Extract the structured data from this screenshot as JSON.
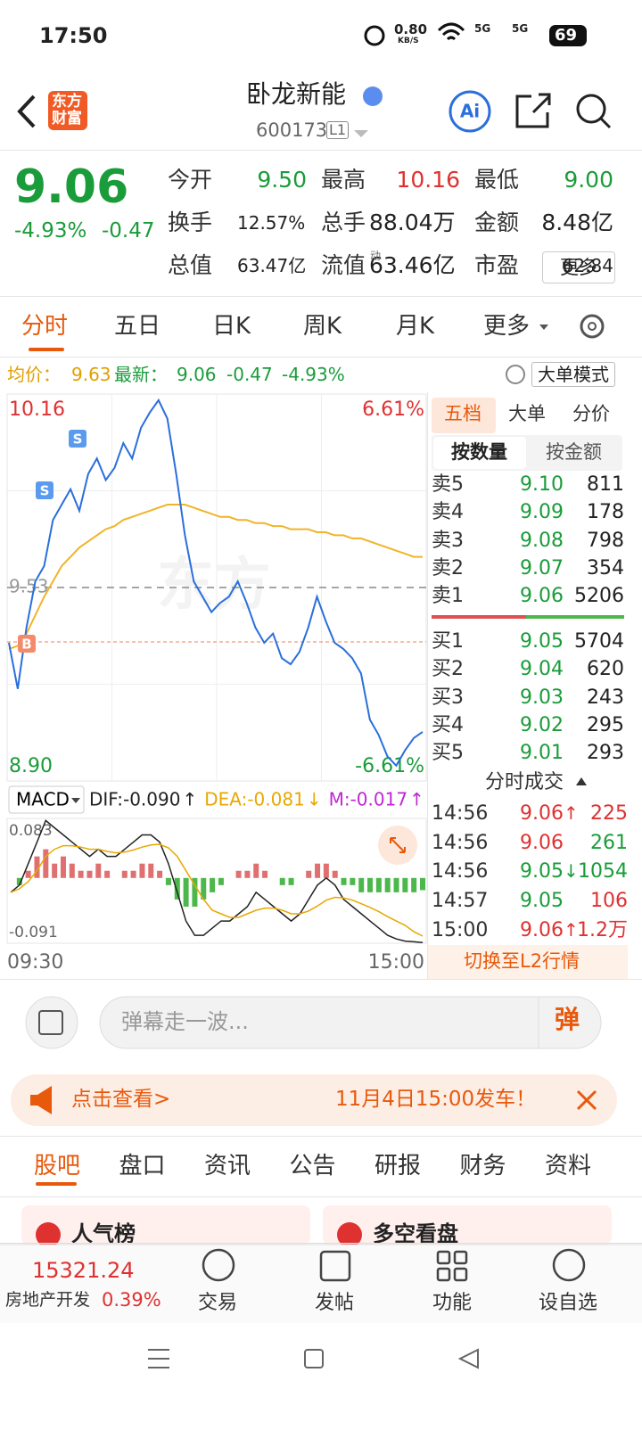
{
  "status": {
    "time": "17:50",
    "speed": "0.80",
    "speed_unit": "KB/S",
    "network": [
      "5G",
      "5G"
    ],
    "battery": "69"
  },
  "header": {
    "logo": [
      "东方",
      "财富"
    ],
    "title": "卧龙新能",
    "code": "600173",
    "level": "L1"
  },
  "quote": {
    "price": "9.06",
    "change_pct": "-4.93%",
    "change": "-0.47",
    "fields": [
      {
        "label": "今开",
        "value": "9.50",
        "color": "#1a9c3a"
      },
      {
        "label": "最高",
        "value": "10.16",
        "color": "#e03131"
      },
      {
        "label": "最低",
        "value": "9.00",
        "color": "#1a9c3a"
      },
      {
        "label": "换手",
        "value": "12.57%",
        "color": "#222222"
      },
      {
        "label": "总手",
        "value": "88.04万",
        "color": "#222222"
      },
      {
        "label": "金额",
        "value": "8.48亿",
        "color": "#222222"
      },
      {
        "label": "总值",
        "value": "63.47亿",
        "color": "#222222"
      },
      {
        "label": "流值",
        "value": "63.46亿",
        "color": "#222222"
      },
      {
        "label": "市盈",
        "value": "62.84",
        "color": "#222222"
      }
    ],
    "pe_tag": "动",
    "more": "更多"
  },
  "tabs": [
    "分时",
    "五日",
    "日K",
    "周K",
    "月K",
    "更多"
  ],
  "info": {
    "avg_label": "均价：",
    "avg": "9.63",
    "last_label": "最新：",
    "last": "9.06",
    "change": "-0.47",
    "pct": "-4.93%",
    "mode": "大单模式"
  },
  "markers": [
    "S",
    "S",
    "B"
  ],
  "chart_data": [
    {
      "type": "line",
      "ylim": [
        8.9,
        10.16
      ],
      "yticks": [
        10.16,
        {
          "value": 8.9,
          "label": "8.90"
        }
      ],
      "y2lim": [
        -6.61,
        6.61
      ],
      "y2ticks": [
        {
          "value": 6.61,
          "label": "6.61%"
        },
        {
          "value": -6.61,
          "label": "-6.61%"
        }
      ],
      "prev_close": 9.53,
      "series": [
        {
          "color": "#2a6fdb",
          "values": [
            9.35,
            9.2,
            9.4,
            9.55,
            9.6,
            9.75,
            9.8,
            9.85,
            9.78,
            9.9,
            9.95,
            9.88,
            9.92,
            10.0,
            9.95,
            10.05,
            10.1,
            10.14,
            10.08,
            9.9,
            9.7,
            9.55,
            9.5,
            9.45,
            9.48,
            9.5,
            9.55,
            9.48,
            9.4,
            9.35,
            9.38,
            9.3,
            9.28,
            9.32,
            9.4,
            9.5,
            9.42,
            9.35,
            9.33,
            9.3,
            9.25,
            9.1,
            9.05,
            8.98,
            8.95,
            9.0,
            9.04,
            9.06
          ]
        },
        {
          "color": "#f0b429",
          "values": [
            9.33,
            9.34,
            9.38,
            9.44,
            9.5,
            9.55,
            9.6,
            9.63,
            9.66,
            9.68,
            9.7,
            9.72,
            9.73,
            9.75,
            9.76,
            9.77,
            9.78,
            9.79,
            9.8,
            9.8,
            9.8,
            9.79,
            9.78,
            9.77,
            9.76,
            9.76,
            9.75,
            9.75,
            9.74,
            9.74,
            9.73,
            9.73,
            9.72,
            9.72,
            9.72,
            9.71,
            9.71,
            9.7,
            9.7,
            9.69,
            9.69,
            9.68,
            9.67,
            9.66,
            9.65,
            9.64,
            9.63,
            9.63
          ]
        }
      ]
    },
    {
      "type": "macd",
      "label": "MACD",
      "legend": [
        {
          "text": "DIF:-0.090",
          "arrow": "↑",
          "color": "#222222"
        },
        {
          "text": "DEA:-0.081",
          "arrow": "↓",
          "color": "#e8a800"
        },
        {
          "text": "M:-0.017",
          "arrow": "↑",
          "color": "#c026d3"
        }
      ],
      "ylim": [
        -0.091,
        0.083
      ],
      "yticks": [
        0.083,
        -0.091
      ],
      "xlabels": [
        "09:30",
        "15:00"
      ],
      "up_color": "#e07070",
      "down_color": "#4cb84c",
      "values": [
        0,
        -0.01,
        0.01,
        0.03,
        0.04,
        0.02,
        0.03,
        0.02,
        0.01,
        0.01,
        0.02,
        0.01,
        0,
        0.01,
        0.01,
        0.02,
        0.02,
        0.01,
        -0.01,
        -0.03,
        -0.04,
        -0.04,
        -0.03,
        -0.02,
        -0.01,
        0,
        0.01,
        0.01,
        0.02,
        0.01,
        0,
        -0.01,
        -0.01,
        0,
        0.01,
        0.02,
        0.02,
        0.01,
        -0.01,
        -0.01,
        -0.02,
        -0.02,
        -0.02,
        -0.02,
        -0.02,
        -0.02,
        -0.02,
        -0.017
      ],
      "series": [
        {
          "color": "#222222",
          "values": [
            -0.02,
            -0.01,
            0.02,
            0.05,
            0.08,
            0.07,
            0.06,
            0.05,
            0.04,
            0.03,
            0.04,
            0.03,
            0.03,
            0.04,
            0.05,
            0.06,
            0.06,
            0.05,
            0.02,
            -0.02,
            -0.06,
            -0.08,
            -0.08,
            -0.07,
            -0.06,
            -0.06,
            -0.05,
            -0.04,
            -0.02,
            -0.03,
            -0.04,
            -0.05,
            -0.06,
            -0.05,
            -0.03,
            -0.01,
            0,
            -0.01,
            -0.03,
            -0.04,
            -0.05,
            -0.06,
            -0.07,
            -0.08,
            -0.085,
            -0.088,
            -0.089,
            -0.09
          ]
        },
        {
          "color": "#e8a800",
          "values": [
            -0.02,
            -0.015,
            -0.005,
            0.01,
            0.03,
            0.04,
            0.045,
            0.045,
            0.043,
            0.04,
            0.04,
            0.037,
            0.035,
            0.036,
            0.039,
            0.043,
            0.046,
            0.047,
            0.042,
            0.03,
            0.01,
            -0.01,
            -0.03,
            -0.045,
            -0.05,
            -0.055,
            -0.055,
            -0.05,
            -0.045,
            -0.042,
            -0.042,
            -0.045,
            -0.05,
            -0.05,
            -0.046,
            -0.039,
            -0.031,
            -0.027,
            -0.028,
            -0.031,
            -0.036,
            -0.041,
            -0.047,
            -0.054,
            -0.06,
            -0.066,
            -0.075,
            -0.081
          ]
        }
      ]
    }
  ],
  "book": {
    "tabs": [
      "五档",
      "大单",
      "分价"
    ],
    "modes": [
      "按数量",
      "按金额"
    ],
    "sells": [
      {
        "label": "卖5",
        "price": "9.10",
        "volume": "811"
      },
      {
        "label": "卖4",
        "price": "9.09",
        "volume": "178"
      },
      {
        "label": "卖3",
        "price": "9.08",
        "volume": "798"
      },
      {
        "label": "卖2",
        "price": "9.07",
        "volume": "354"
      },
      {
        "label": "卖1",
        "price": "9.06",
        "volume": "5206"
      }
    ],
    "buys": [
      {
        "label": "买1",
        "price": "9.05",
        "volume": "5704"
      },
      {
        "label": "买2",
        "price": "9.04",
        "volume": "620"
      },
      {
        "label": "买3",
        "price": "9.03",
        "volume": "243"
      },
      {
        "label": "买4",
        "price": "9.02",
        "volume": "295"
      },
      {
        "label": "买5",
        "price": "9.01",
        "volume": "293"
      }
    ],
    "trades_title": "分时成交",
    "trades": [
      {
        "time": "14:56",
        "price": "9.06",
        "arrow": "↑",
        "arrow_color": "#e03131",
        "volume": "225",
        "color": "#e03131"
      },
      {
        "time": "14:56",
        "price": "9.06",
        "arrow": "",
        "arrow_color": "#e03131",
        "volume": "261",
        "color": "#1a9c3a"
      },
      {
        "time": "14:56",
        "price": "9.05",
        "arrow": "↓",
        "arrow_color": "#1a9c3a",
        "volume": "1054",
        "color": "#1a9c3a"
      },
      {
        "time": "14:57",
        "price": "9.05",
        "arrow": "",
        "arrow_color": "#1a9c3a",
        "volume": "106",
        "color": "#e03131"
      },
      {
        "time": "15:00",
        "price": "9.06",
        "arrow": "↑",
        "arrow_color": "#e03131",
        "volume": "1.2万",
        "color": "#e03131"
      }
    ],
    "switch": "切换至L2行情"
  },
  "comment": {
    "placeholder": "弹幕走一波...",
    "button": "弹"
  },
  "banner": {
    "left": "点击查看>",
    "right": "11月4日15:00发车！"
  },
  "sections": [
    "股吧",
    "盘口",
    "资讯",
    "公告",
    "研报",
    "财务",
    "资料"
  ],
  "cards": [
    "人气榜",
    "多空看盘"
  ],
  "footer": {
    "index": "15321.24",
    "sector": "房地产开发",
    "pct": "0.39%",
    "buttons": [
      "交易",
      "发帖",
      "功能",
      "设自选"
    ]
  }
}
